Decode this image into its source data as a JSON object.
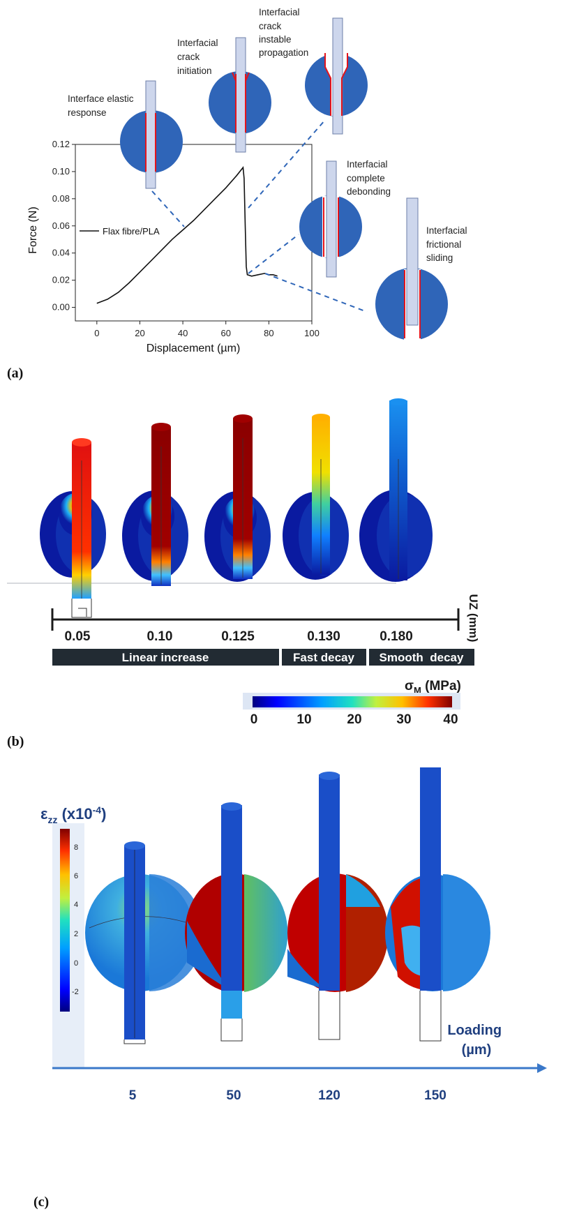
{
  "panel_a": {
    "label": "(a)",
    "stages": [
      {
        "lines": [
          "Interface elastic",
          "response"
        ]
      },
      {
        "lines": [
          "Interfacial",
          "crack",
          "initiation"
        ]
      },
      {
        "lines": [
          "Interfacial",
          "crack",
          "instable",
          "propagation"
        ]
      },
      {
        "lines": [
          "Interfacial",
          "complete",
          "debonding"
        ]
      },
      {
        "lines": [
          "Interfacial",
          "frictional",
          "sliding"
        ]
      }
    ],
    "chart_data": {
      "type": "line",
      "xlabel": "Displacement (µm)",
      "ylabel": "Force (N)",
      "xlim": [
        -10,
        100
      ],
      "ylim": [
        -0.01,
        0.12
      ],
      "xticks": [
        "0",
        "20",
        "40",
        "60",
        "80",
        "100"
      ],
      "yticks": [
        "0.00",
        "0.02",
        "0.04",
        "0.06",
        "0.08",
        "0.10",
        "0.12"
      ],
      "legend": "top-left",
      "series": [
        {
          "name": "Flax fibre/PLA",
          "x": [
            0,
            5,
            10,
            15,
            20,
            25,
            30,
            35,
            40,
            45,
            50,
            55,
            60,
            65,
            68,
            68.5,
            69,
            69.5,
            70,
            72,
            75,
            78,
            80,
            82,
            84
          ],
          "y": [
            0.003,
            0.006,
            0.011,
            0.018,
            0.026,
            0.034,
            0.042,
            0.05,
            0.057,
            0.064,
            0.072,
            0.08,
            0.088,
            0.097,
            0.103,
            0.095,
            0.06,
            0.03,
            0.024,
            0.023,
            0.024,
            0.025,
            0.024,
            0.024,
            0.023
          ]
        }
      ]
    }
  },
  "panel_b": {
    "label": "(b)",
    "axis_label": "UZ (mm)",
    "values": [
      "0.05",
      "0.10",
      "0.125",
      "0.130",
      "0.180"
    ],
    "phases": [
      "Linear increase",
      "Fast decay",
      "Smooth  decay"
    ],
    "colorbar_title": "σM (MPa)",
    "colorbar_ticks": [
      "0",
      "10",
      "20",
      "30",
      "40"
    ]
  },
  "panel_c": {
    "label": "(c)",
    "colorbar_title": "εzz (x10-4)",
    "colorbar_ticks": [
      "8",
      "6",
      "4",
      "2",
      "0",
      "-2"
    ],
    "axis_label_line1": "Loading",
    "axis_label_line2": "(µm)",
    "values": [
      "5",
      "50",
      "120",
      "150"
    ]
  },
  "colors": {
    "disc_blue": "#2f65b8",
    "fibre": "#cdd6ec",
    "interface_red": "#e4141c",
    "dashed": "#2f66b8",
    "phase_box": "#222b33",
    "axis_blue": "#3a78c9",
    "label_navy": "#1f3f7f"
  }
}
